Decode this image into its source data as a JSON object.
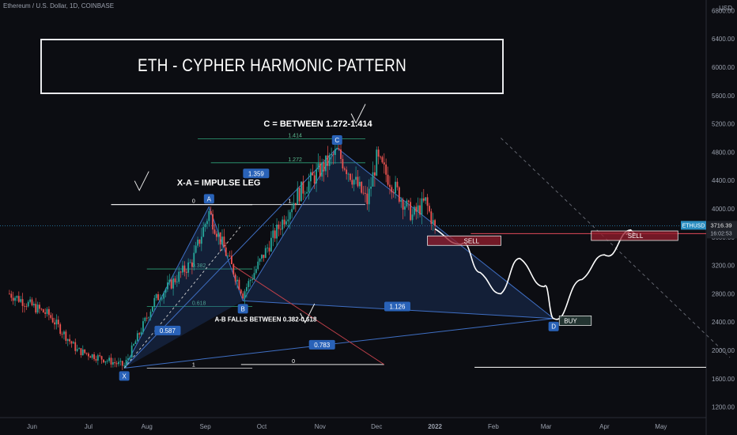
{
  "header": {
    "symbol_line": "Ethereum / U.S. Dollar, 1D, COINBASE",
    "title": "ETH - CYPHER HARMONIC PATTERN",
    "currency": "USD"
  },
  "price_tag": {
    "symbol": "ETHUSD",
    "price": "3716.39",
    "countdown": "16:02:53"
  },
  "chart_data": {
    "type": "candlestick",
    "title": "ETH - CYPHER HARMONIC PATTERN",
    "x_ticks": [
      "Jun",
      "Jul",
      "Aug",
      "Sep",
      "Oct",
      "Nov",
      "Dec",
      "2022",
      "Feb",
      "Mar",
      "Apr",
      "May"
    ],
    "y_ticks": [
      1200,
      1600,
      2000,
      2400,
      2800,
      3200,
      3600,
      4000,
      4400,
      4800,
      5200,
      5600,
      6000,
      6400,
      6800
    ],
    "y_tick_labels": [
      "1200.00",
      "1600.00",
      "2000.00",
      "2400.00",
      "2800.00",
      "3200.00",
      "3600.00",
      "4000.00",
      "4400.00",
      "4800.00",
      "5200.00",
      "5600.00",
      "6000.00",
      "6400.00",
      "6800.00"
    ],
    "ylim": [
      1050,
      6950
    ],
    "xlim": [
      "2021-05-15",
      "2022-05-25"
    ],
    "key_closes": [
      {
        "date": "2021-05-20",
        "price": 2800
      },
      {
        "date": "2021-06-10",
        "price": 2500
      },
      {
        "date": "2021-06-25",
        "price": 2000
      },
      {
        "date": "2021-07-20",
        "price": 1780
      },
      {
        "date": "2021-08-05",
        "price": 2700
      },
      {
        "date": "2021-08-25",
        "price": 3250
      },
      {
        "date": "2021-09-03",
        "price": 3950
      },
      {
        "date": "2021-09-21",
        "price": 2800
      },
      {
        "date": "2021-10-05",
        "price": 3500
      },
      {
        "date": "2021-10-20",
        "price": 4200
      },
      {
        "date": "2021-11-10",
        "price": 4800
      },
      {
        "date": "2021-11-26",
        "price": 4100
      },
      {
        "date": "2021-12-01",
        "price": 4700
      },
      {
        "date": "2021-12-20",
        "price": 3900
      },
      {
        "date": "2021-12-27",
        "price": 4100
      },
      {
        "date": "2022-01-01",
        "price": 3716
      }
    ],
    "pattern_points": [
      {
        "label": "X",
        "date": "2021-07-20",
        "price": 1750
      },
      {
        "label": "A",
        "date": "2021-09-03",
        "price": 4030
      },
      {
        "label": "B",
        "date": "2021-09-21",
        "price": 2700
      },
      {
        "label": "C",
        "date": "2021-11-10",
        "price": 4860
      },
      {
        "label": "D",
        "date": "2022-03-05",
        "price": 2450
      }
    ],
    "ratios": [
      {
        "label": "1.359",
        "price": 4500
      },
      {
        "label": "0.587",
        "price": 2300
      },
      {
        "label": "1.126",
        "price": 2650
      },
      {
        "label": "0.783",
        "price": 2100
      }
    ],
    "fib_levels_xa": [
      {
        "label": "0",
        "price": 4060
      },
      {
        "label": "0.382",
        "price": 3150
      },
      {
        "label": "0.618",
        "price": 2620
      },
      {
        "label": "1",
        "price": 1750
      }
    ],
    "fib_levels_c": [
      {
        "label": "1.414",
        "price": 4990
      },
      {
        "label": "1.272",
        "price": 4650
      },
      {
        "label": "1",
        "price": 4060
      },
      {
        "label": "0",
        "price": 1800
      }
    ],
    "projection": [
      {
        "date": "2022-01-01",
        "price": 3716
      },
      {
        "date": "2022-01-15",
        "price": 3500
      },
      {
        "date": "2022-01-25",
        "price": 3100
      },
      {
        "date": "2022-02-05",
        "price": 2800
      },
      {
        "date": "2022-02-15",
        "price": 3300
      },
      {
        "date": "2022-02-28",
        "price": 2900
      },
      {
        "date": "2022-03-05",
        "price": 2450
      },
      {
        "date": "2022-03-20",
        "price": 3000
      },
      {
        "date": "2022-04-01",
        "price": 3350
      },
      {
        "date": "2022-04-15",
        "price": 3700
      }
    ],
    "zones": [
      {
        "label": "SELL",
        "type": "sell",
        "from": "2021-12-28",
        "to": "2022-02-05",
        "price": 3550
      },
      {
        "label": "SELL",
        "type": "sell",
        "from": "2022-03-25",
        "to": "2022-05-10",
        "price": 3620
      },
      {
        "label": "BUY",
        "type": "buy",
        "from": "2022-03-08",
        "to": "2022-03-25",
        "price": 2420
      }
    ],
    "annotations": [
      {
        "text": "C = BETWEEN 1.272-1.414",
        "date": "2021-10-05",
        "price": 5100
      },
      {
        "text": "X-A = IMPULSE LEG",
        "date": "2021-08-10",
        "price": 4350
      },
      {
        "text": "A-B FALLS BETWEEN 0.382-0.618",
        "date": "2021-09-06",
        "price": 2450
      }
    ],
    "current_price": 3716.39,
    "support_level": 1760,
    "grid": false
  }
}
